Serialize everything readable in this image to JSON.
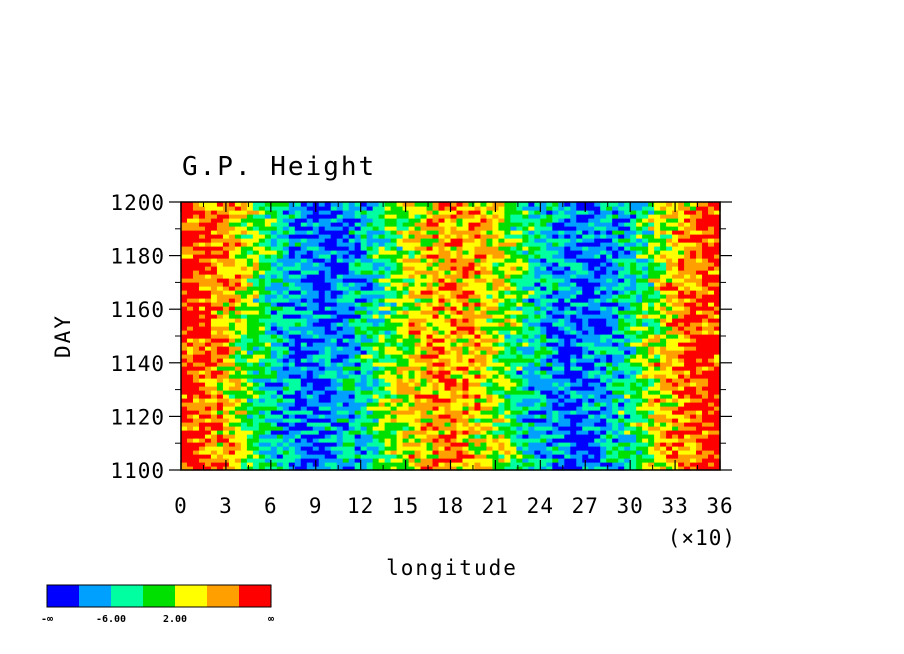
{
  "chart_data": {
    "type": "heatmap",
    "title": "G.P. Height",
    "xlabel": "longitude",
    "x_scale_note": "(×10)",
    "ylabel": "DAY",
    "xlim": [
      0,
      36
    ],
    "ylim": [
      1100,
      1200
    ],
    "x_tick_labels": [
      "0",
      "3",
      "6",
      "9",
      "12",
      "15",
      "18",
      "21",
      "24",
      "27",
      "30",
      "33",
      "36"
    ],
    "y_tick_labels": [
      "1100",
      "1120",
      "1140",
      "1160",
      "1180",
      "1200"
    ],
    "colorbar": {
      "colors": [
        "#0000ff",
        "#00a0ff",
        "#00ffa0",
        "#00e000",
        "#ffff00",
        "#ffa000",
        "#ff0000"
      ],
      "tick_labels": [
        "-∞",
        "-6.00",
        "2.00",
        "∞"
      ]
    },
    "pattern": {
      "high_bands_longitude_x10": [
        0.5,
        19.2,
        35.5
      ],
      "low_bands_longitude_x10": [
        8.6,
        27.2
      ]
    }
  }
}
